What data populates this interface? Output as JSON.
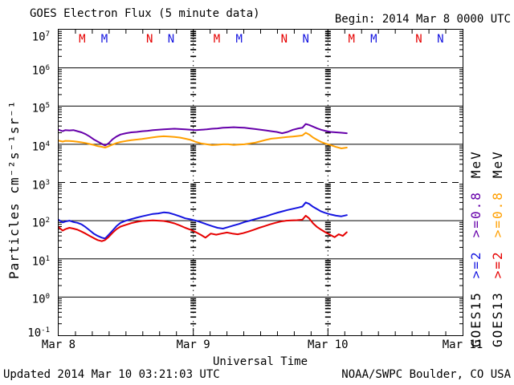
{
  "header": {
    "title": "GOES Electron Flux (5 minute data)",
    "begin": "Begin: 2014 Mar 8 0000 UTC"
  },
  "footer": {
    "updated": "Updated 2014 Mar 10 03:21:03 UTC",
    "source": "NOAA/SWPC Boulder, CO USA"
  },
  "axes": {
    "xlabel": "Universal Time",
    "ylabel": "Particles cm⁻²s⁻¹sr⁻¹",
    "x_ticks": [
      "Mar 8",
      "Mar 9",
      "Mar 10",
      "Mar 11"
    ],
    "y_exponents": [
      7,
      6,
      5,
      4,
      3,
      2,
      1,
      0,
      -1
    ]
  },
  "legend": {
    "unit": "MeV",
    "e08_label": ">=0.8",
    "e2_label": ">=2",
    "satellites": [
      {
        "name": "GOES15",
        "e08_color": "#6600aa",
        "e2_color": "#1414e0"
      },
      {
        "name": "GOES13",
        "e08_color": "#ff9f00",
        "e2_color": "#e60000"
      }
    ]
  },
  "chart_data": {
    "type": "line",
    "title": "GOES Electron Flux (5 minute data)",
    "xlabel": "Universal Time",
    "ylabel": "Particles cm-2 s-1 sr-1",
    "x_unit_days_from": "2014 Mar 8 0000 UTC",
    "x_range_days": [
      0,
      3
    ],
    "y_log_range": [
      -1,
      7
    ],
    "grid": true,
    "solid_gridlines_at": [
      1000000,
      100000,
      10000,
      100,
      10,
      1
    ],
    "dashed_gridline_at": 1000,
    "day_boundaries": [
      1,
      2
    ],
    "series": [
      {
        "name": "GOES15 >=0.8 MeV",
        "color": "#6600aa",
        "points": [
          [
            0.0,
            24000
          ],
          [
            0.03,
            22000
          ],
          [
            0.05,
            23500
          ],
          [
            0.08,
            23000
          ],
          [
            0.11,
            23500
          ],
          [
            0.14,
            22000
          ],
          [
            0.17,
            20500
          ],
          [
            0.2,
            18500
          ],
          [
            0.23,
            16000
          ],
          [
            0.26,
            13500
          ],
          [
            0.29,
            11800
          ],
          [
            0.32,
            10300
          ],
          [
            0.345,
            9300
          ],
          [
            0.37,
            10500
          ],
          [
            0.4,
            13500
          ],
          [
            0.43,
            16000
          ],
          [
            0.46,
            18000
          ],
          [
            0.5,
            19500
          ],
          [
            0.54,
            20500
          ],
          [
            0.58,
            21000
          ],
          [
            0.62,
            22000
          ],
          [
            0.66,
            22500
          ],
          [
            0.7,
            23500
          ],
          [
            0.74,
            24000
          ],
          [
            0.78,
            24500
          ],
          [
            0.82,
            25000
          ],
          [
            0.86,
            25500
          ],
          [
            0.9,
            25000
          ],
          [
            0.94,
            24500
          ],
          [
            0.98,
            24000
          ],
          [
            1.02,
            23500
          ],
          [
            1.06,
            24000
          ],
          [
            1.1,
            24500
          ],
          [
            1.14,
            25500
          ],
          [
            1.18,
            26000
          ],
          [
            1.22,
            27000
          ],
          [
            1.26,
            27500
          ],
          [
            1.3,
            28000
          ],
          [
            1.34,
            27500
          ],
          [
            1.38,
            27000
          ],
          [
            1.42,
            26000
          ],
          [
            1.46,
            25000
          ],
          [
            1.5,
            24000
          ],
          [
            1.54,
            23000
          ],
          [
            1.58,
            22000
          ],
          [
            1.62,
            21000
          ],
          [
            1.66,
            19500
          ],
          [
            1.7,
            21000
          ],
          [
            1.74,
            24000
          ],
          [
            1.78,
            26000
          ],
          [
            1.81,
            27000
          ],
          [
            1.835,
            34000
          ],
          [
            1.86,
            32000
          ],
          [
            1.89,
            29000
          ],
          [
            1.92,
            26000
          ],
          [
            1.95,
            24000
          ],
          [
            1.98,
            22500
          ],
          [
            2.02,
            21000
          ],
          [
            2.06,
            20500
          ],
          [
            2.1,
            20000
          ],
          [
            2.14,
            19500
          ]
        ]
      },
      {
        "name": "GOES13 >=0.8 MeV",
        "color": "#ff9f00",
        "points": [
          [
            0.0,
            12500
          ],
          [
            0.03,
            11800
          ],
          [
            0.05,
            12300
          ],
          [
            0.08,
            12200
          ],
          [
            0.11,
            12000
          ],
          [
            0.14,
            11600
          ],
          [
            0.17,
            11200
          ],
          [
            0.2,
            10800
          ],
          [
            0.23,
            10200
          ],
          [
            0.26,
            9600
          ],
          [
            0.29,
            9000
          ],
          [
            0.32,
            8600
          ],
          [
            0.345,
            8200
          ],
          [
            0.37,
            8800
          ],
          [
            0.4,
            9800
          ],
          [
            0.43,
            10800
          ],
          [
            0.46,
            11500
          ],
          [
            0.5,
            12200
          ],
          [
            0.54,
            12800
          ],
          [
            0.58,
            13300
          ],
          [
            0.62,
            13800
          ],
          [
            0.66,
            14500
          ],
          [
            0.7,
            15200
          ],
          [
            0.74,
            15800
          ],
          [
            0.78,
            16200
          ],
          [
            0.82,
            16000
          ],
          [
            0.86,
            15500
          ],
          [
            0.9,
            15000
          ],
          [
            0.94,
            14000
          ],
          [
            0.98,
            13000
          ],
          [
            1.02,
            11500
          ],
          [
            1.06,
            10500
          ],
          [
            1.1,
            10000
          ],
          [
            1.14,
            9500
          ],
          [
            1.18,
            9700
          ],
          [
            1.22,
            10000
          ],
          [
            1.26,
            10000
          ],
          [
            1.3,
            9600
          ],
          [
            1.34,
            9800
          ],
          [
            1.38,
            10000
          ],
          [
            1.42,
            10500
          ],
          [
            1.46,
            11000
          ],
          [
            1.5,
            12000
          ],
          [
            1.54,
            13000
          ],
          [
            1.58,
            14000
          ],
          [
            1.62,
            14500
          ],
          [
            1.66,
            15000
          ],
          [
            1.7,
            15500
          ],
          [
            1.74,
            16000
          ],
          [
            1.78,
            16500
          ],
          [
            1.81,
            17000
          ],
          [
            1.835,
            20000
          ],
          [
            1.86,
            18000
          ],
          [
            1.89,
            15000
          ],
          [
            1.92,
            13000
          ],
          [
            1.95,
            11500
          ],
          [
            1.98,
            10500
          ],
          [
            2.02,
            9500
          ],
          [
            2.06,
            8500
          ],
          [
            2.1,
            7800
          ],
          [
            2.14,
            8200
          ]
        ]
      },
      {
        "name": "GOES15 >=2 MeV",
        "color": "#1414e0",
        "points": [
          [
            0.0,
            105
          ],
          [
            0.03,
            90
          ],
          [
            0.05,
            95
          ],
          [
            0.08,
            100
          ],
          [
            0.11,
            92
          ],
          [
            0.14,
            88
          ],
          [
            0.17,
            80
          ],
          [
            0.2,
            68
          ],
          [
            0.23,
            56
          ],
          [
            0.26,
            46
          ],
          [
            0.29,
            40
          ],
          [
            0.32,
            36
          ],
          [
            0.345,
            34
          ],
          [
            0.37,
            42
          ],
          [
            0.4,
            55
          ],
          [
            0.43,
            72
          ],
          [
            0.46,
            88
          ],
          [
            0.5,
            100
          ],
          [
            0.54,
            110
          ],
          [
            0.58,
            120
          ],
          [
            0.62,
            130
          ],
          [
            0.66,
            140
          ],
          [
            0.7,
            150
          ],
          [
            0.74,
            155
          ],
          [
            0.78,
            165
          ],
          [
            0.82,
            160
          ],
          [
            0.86,
            145
          ],
          [
            0.9,
            130
          ],
          [
            0.94,
            115
          ],
          [
            0.98,
            108
          ],
          [
            1.02,
            100
          ],
          [
            1.06,
            90
          ],
          [
            1.1,
            80
          ],
          [
            1.14,
            72
          ],
          [
            1.18,
            65
          ],
          [
            1.22,
            62
          ],
          [
            1.26,
            68
          ],
          [
            1.3,
            75
          ],
          [
            1.34,
            82
          ],
          [
            1.38,
            92
          ],
          [
            1.42,
            100
          ],
          [
            1.46,
            110
          ],
          [
            1.5,
            120
          ],
          [
            1.54,
            130
          ],
          [
            1.58,
            145
          ],
          [
            1.62,
            160
          ],
          [
            1.66,
            175
          ],
          [
            1.7,
            190
          ],
          [
            1.74,
            205
          ],
          [
            1.78,
            220
          ],
          [
            1.81,
            235
          ],
          [
            1.835,
            300
          ],
          [
            1.86,
            275
          ],
          [
            1.89,
            230
          ],
          [
            1.92,
            200
          ],
          [
            1.95,
            175
          ],
          [
            1.98,
            160
          ],
          [
            2.02,
            145
          ],
          [
            2.06,
            135
          ],
          [
            2.1,
            130
          ],
          [
            2.14,
            140
          ]
        ]
      },
      {
        "name": "GOES13 >=2 MeV",
        "color": "#e60000",
        "points": [
          [
            0.0,
            68
          ],
          [
            0.03,
            55
          ],
          [
            0.05,
            60
          ],
          [
            0.08,
            65
          ],
          [
            0.11,
            62
          ],
          [
            0.14,
            58
          ],
          [
            0.17,
            52
          ],
          [
            0.2,
            46
          ],
          [
            0.23,
            40
          ],
          [
            0.26,
            35
          ],
          [
            0.29,
            31
          ],
          [
            0.32,
            29
          ],
          [
            0.345,
            31
          ],
          [
            0.37,
            37
          ],
          [
            0.4,
            48
          ],
          [
            0.43,
            60
          ],
          [
            0.46,
            70
          ],
          [
            0.5,
            78
          ],
          [
            0.54,
            86
          ],
          [
            0.58,
            93
          ],
          [
            0.62,
            98
          ],
          [
            0.66,
            100
          ],
          [
            0.7,
            102
          ],
          [
            0.74,
            100
          ],
          [
            0.78,
            98
          ],
          [
            0.82,
            92
          ],
          [
            0.86,
            85
          ],
          [
            0.9,
            75
          ],
          [
            0.94,
            65
          ],
          [
            0.98,
            58
          ],
          [
            1.02,
            50
          ],
          [
            1.06,
            42
          ],
          [
            1.09,
            36
          ],
          [
            1.13,
            46
          ],
          [
            1.17,
            43
          ],
          [
            1.21,
            46
          ],
          [
            1.25,
            49
          ],
          [
            1.29,
            46
          ],
          [
            1.33,
            44
          ],
          [
            1.37,
            47
          ],
          [
            1.41,
            52
          ],
          [
            1.45,
            58
          ],
          [
            1.49,
            65
          ],
          [
            1.53,
            72
          ],
          [
            1.57,
            80
          ],
          [
            1.61,
            88
          ],
          [
            1.65,
            95
          ],
          [
            1.69,
            100
          ],
          [
            1.73,
            102
          ],
          [
            1.77,
            103
          ],
          [
            1.81,
            106
          ],
          [
            1.835,
            135
          ],
          [
            1.86,
            115
          ],
          [
            1.89,
            85
          ],
          [
            1.92,
            68
          ],
          [
            1.95,
            58
          ],
          [
            1.98,
            50
          ],
          [
            2.02,
            42
          ],
          [
            2.05,
            37
          ],
          [
            2.08,
            44
          ],
          [
            2.11,
            40
          ],
          [
            2.14,
            50
          ]
        ]
      }
    ],
    "markers": [
      {
        "t": 0.175,
        "label": "M",
        "color": "#e60000"
      },
      {
        "t": 0.34,
        "label": "M",
        "color": "#1414e0"
      },
      {
        "t": 0.675,
        "label": "N",
        "color": "#e60000"
      },
      {
        "t": 0.835,
        "label": "N",
        "color": "#1414e0"
      },
      {
        "t": 1.175,
        "label": "M",
        "color": "#e60000"
      },
      {
        "t": 1.34,
        "label": "M",
        "color": "#1414e0"
      },
      {
        "t": 1.675,
        "label": "N",
        "color": "#e60000"
      },
      {
        "t": 1.835,
        "label": "N",
        "color": "#1414e0"
      },
      {
        "t": 2.175,
        "label": "M",
        "color": "#e60000"
      },
      {
        "t": 2.34,
        "label": "M",
        "color": "#1414e0"
      },
      {
        "t": 2.675,
        "label": "N",
        "color": "#e60000"
      },
      {
        "t": 2.835,
        "label": "N",
        "color": "#1414e0"
      }
    ]
  },
  "colors": {
    "background": "#ffffff",
    "axis": "#000000"
  }
}
